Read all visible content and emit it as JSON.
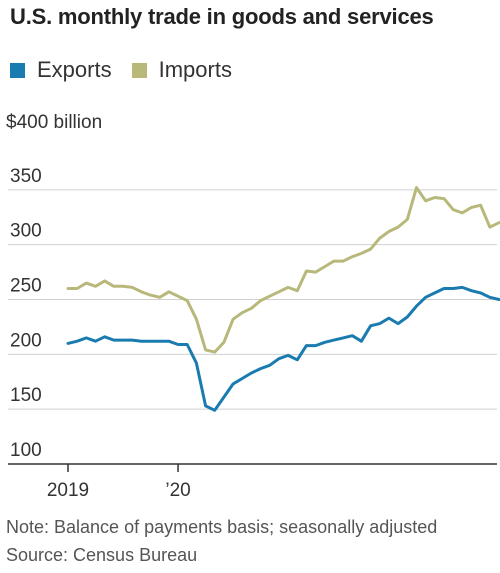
{
  "chart_data": {
    "type": "line",
    "title": "U.S. monthly trade in goods and services",
    "unit_label": "$400 billion",
    "ylim": [
      100,
      400
    ],
    "yticks": [
      100,
      150,
      200,
      250,
      300,
      350
    ],
    "xticks": [
      {
        "label": "2019",
        "index": 0
      },
      {
        "label": "’20",
        "index": 12
      }
    ],
    "grid": true,
    "legend_position": "top-left",
    "series": [
      {
        "name": "Exports",
        "color": "#1a7bb0",
        "values": [
          210,
          212,
          215,
          212,
          216,
          213,
          213,
          213,
          212,
          212,
          212,
          212,
          209,
          209,
          192,
          153,
          149,
          161,
          173,
          178,
          183,
          187,
          190,
          196,
          199,
          195,
          208,
          208,
          211,
          213,
          215,
          217,
          212,
          226,
          228,
          233,
          228,
          234,
          244,
          252,
          256,
          260,
          260,
          261,
          258,
          256,
          252,
          250
        ]
      },
      {
        "name": "Imports",
        "color": "#b8b87b",
        "values": [
          260,
          260,
          265,
          262,
          267,
          262,
          262,
          261,
          257,
          254,
          252,
          257,
          253,
          249,
          232,
          204,
          202,
          211,
          232,
          238,
          242,
          249,
          253,
          257,
          261,
          258,
          276,
          275,
          280,
          285,
          285,
          289,
          292,
          296,
          306,
          312,
          316,
          323,
          352,
          340,
          343,
          342,
          332,
          329,
          334,
          336,
          316,
          320
        ]
      }
    ]
  },
  "footer": {
    "note": "Note: Balance of payments basis; seasonally adjusted",
    "source": "Source: Census Bureau"
  }
}
